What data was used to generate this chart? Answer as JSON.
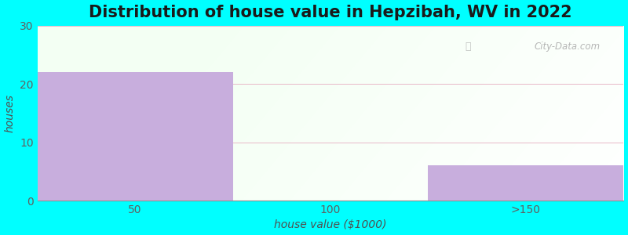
{
  "title": "Distribution of house value in Hepzibah, WV in 2022",
  "xlabel": "house value ($1000)",
  "ylabel": "houses",
  "categories": [
    "50",
    "100",
    ">150"
  ],
  "values": [
    22,
    0,
    6
  ],
  "bar_color": "#c8aedd",
  "ylim": [
    0,
    30
  ],
  "yticks": [
    0,
    10,
    20,
    30
  ],
  "figure_bg": "#00ffff",
  "grid_color": "#e8b8c8",
  "title_fontsize": 15,
  "label_fontsize": 10,
  "tick_fontsize": 10,
  "watermark": "City-Data.com",
  "tick_color": "#606060",
  "xlabel_color": "#505050",
  "ylabel_color": "#505050"
}
